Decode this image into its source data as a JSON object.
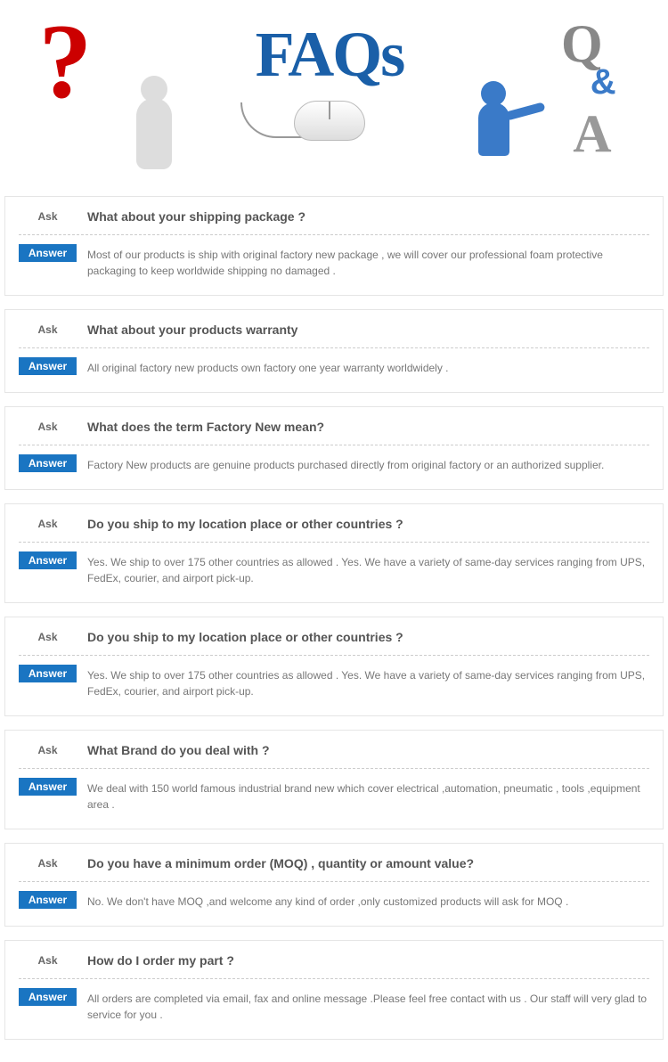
{
  "header": {
    "faqs_text": "FAQs",
    "q_letter": "Q",
    "amp": "&",
    "a_letter": "A",
    "qmark": "?"
  },
  "labels": {
    "ask": "Ask",
    "answer": "Answer"
  },
  "faqs": [
    {
      "question": "What about your shipping package ?",
      "answer": "Most of our products is ship with original factory new package , we will cover our professional foam protective packaging to keep worldwide shipping no damaged ."
    },
    {
      "question": "What about your products warranty",
      "answer": "All original factory new products own factory one year warranty worldwidely ."
    },
    {
      "question": "What does the term Factory New mean?",
      "answer": "Factory New products are genuine products purchased directly from original factory or an authorized supplier."
    },
    {
      "question": "Do you ship to my location place or other countries ?",
      "answer": "Yes. We ship to over 175 other countries as allowed . Yes. We have a variety of same-day services ranging from UPS, FedEx, courier, and airport pick-up."
    },
    {
      "question": "Do you ship to my location place or other countries ?",
      "answer": "Yes. We ship to over 175 other countries as allowed . Yes. We have a variety of same-day services ranging from UPS, FedEx, courier, and airport pick-up."
    },
    {
      "question": "What Brand do you deal with ?",
      "answer": "We deal with 150 world famous industrial brand new which cover electrical ,automation, pneumatic , tools ,equipment area ."
    },
    {
      "question": "Do you have a minimum order (MOQ) , quantity or amount value?",
      "answer": "No. We don't have MOQ ,and welcome any kind of order ,only customized products will ask for MOQ ."
    },
    {
      "question": "How do I order my part ?",
      "answer": "All orders are completed via email, fax and online message .Please feel free contact with us . Our staff will very glad to service for you ."
    }
  ]
}
